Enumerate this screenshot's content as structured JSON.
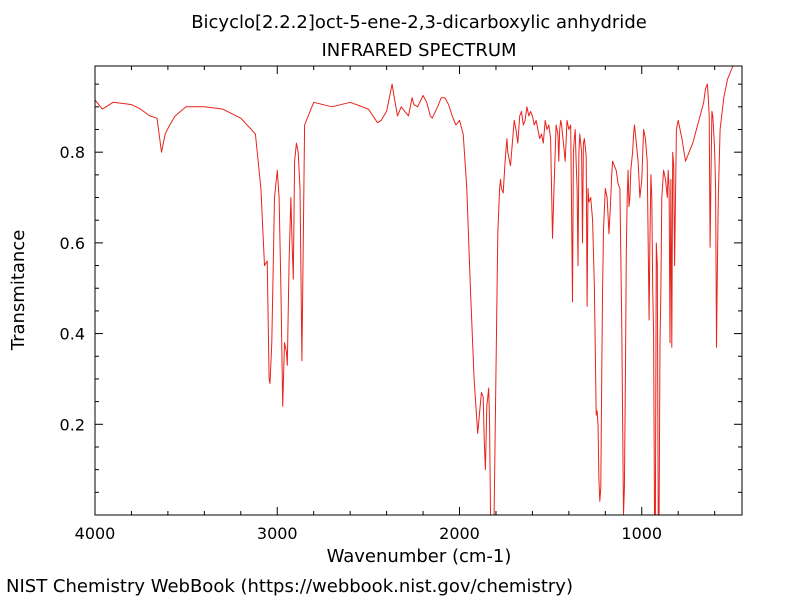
{
  "credit": "NIST Chemistry WebBook (https://webbook.nist.gov/chemistry)",
  "chart_data": {
    "type": "line",
    "title": "Bicyclo[2.2.2]oct-5-ene-2,3-dicarboxylic anhydride",
    "subtitle": "INFRARED SPECTRUM",
    "xlabel": "Wavenumber (cm-1)",
    "ylabel": "Transmitance",
    "xlim": [
      4000,
      450
    ],
    "ylim": [
      0,
      0.99
    ],
    "x_reversed": true,
    "grid": false,
    "line_color": "#e8231c",
    "x_ticks": [
      4000,
      3000,
      2000,
      1000
    ],
    "x_tick_labels": [
      "4000",
      "3000",
      "2000",
      "1000"
    ],
    "y_ticks": [
      0.2,
      0.4,
      0.6,
      0.8
    ],
    "y_tick_labels": [
      "0.2",
      "0.4",
      "0.6",
      "0.8"
    ],
    "series": [
      {
        "x": [
          4000,
          3960,
          3900,
          3800,
          3750,
          3700,
          3660,
          3635,
          3615,
          3590,
          3560,
          3500,
          3400,
          3300,
          3200,
          3120,
          3090,
          3070,
          3055,
          3045,
          3040,
          3030,
          3015,
          3000,
          2990,
          2980,
          2970,
          2960,
          2950,
          2945,
          2935,
          2925,
          2920,
          2912,
          2905,
          2895,
          2885,
          2875,
          2865,
          2850,
          2800,
          2700,
          2600,
          2500,
          2450,
          2430,
          2400,
          2370,
          2360,
          2340,
          2320,
          2300,
          2280,
          2260,
          2250,
          2230,
          2200,
          2180,
          2160,
          2150,
          2120,
          2100,
          2080,
          2060,
          2040,
          2020,
          2000,
          1980,
          1960,
          1940,
          1920,
          1900,
          1880,
          1870,
          1864,
          1858,
          1850,
          1845,
          1840,
          1835,
          1830,
          1820,
          1810,
          1800,
          1790,
          1780,
          1775,
          1770,
          1760,
          1750,
          1740,
          1735,
          1720,
          1700,
          1690,
          1680,
          1670,
          1660,
          1650,
          1640,
          1630,
          1620,
          1610,
          1600,
          1590,
          1580,
          1570,
          1560,
          1550,
          1540,
          1530,
          1520,
          1510,
          1500,
          1490,
          1480,
          1470,
          1460,
          1455,
          1450,
          1445,
          1440,
          1435,
          1430,
          1420,
          1410,
          1400,
          1390,
          1380,
          1375,
          1370,
          1365,
          1360,
          1355,
          1350,
          1345,
          1340,
          1335,
          1330,
          1325,
          1320,
          1315,
          1310,
          1305,
          1300,
          1295,
          1290,
          1280,
          1270,
          1260,
          1250,
          1245,
          1240,
          1235,
          1230,
          1225,
          1220,
          1215,
          1210,
          1200,
          1190,
          1180,
          1170,
          1165,
          1160,
          1150,
          1140,
          1130,
          1120,
          1110,
          1100,
          1095,
          1090,
          1085,
          1080,
          1075,
          1070,
          1065,
          1060,
          1055,
          1050,
          1045,
          1040,
          1030,
          1020,
          1010,
          1000,
          990,
          980,
          970,
          960,
          955,
          950,
          945,
          940,
          935,
          930,
          925,
          920,
          915,
          910,
          905,
          900,
          895,
          890,
          880,
          870,
          860,
          855,
          850,
          845,
          840,
          835,
          830,
          825,
          820,
          810,
          800,
          780,
          760,
          740,
          720,
          700,
          680,
          660,
          650,
          640,
          635,
          630,
          625,
          620,
          615,
          610,
          605,
          600,
          595,
          590,
          585,
          580,
          570,
          550,
          530,
          500,
          480,
          460,
          450
        ],
        "y": [
          0.915,
          0.895,
          0.91,
          0.905,
          0.895,
          0.88,
          0.875,
          0.8,
          0.84,
          0.86,
          0.88,
          0.9,
          0.9,
          0.895,
          0.875,
          0.84,
          0.72,
          0.55,
          0.56,
          0.3,
          0.29,
          0.38,
          0.7,
          0.76,
          0.7,
          0.5,
          0.24,
          0.38,
          0.36,
          0.33,
          0.56,
          0.7,
          0.62,
          0.52,
          0.78,
          0.82,
          0.8,
          0.72,
          0.34,
          0.86,
          0.91,
          0.9,
          0.91,
          0.895,
          0.865,
          0.87,
          0.89,
          0.95,
          0.925,
          0.88,
          0.9,
          0.89,
          0.88,
          0.92,
          0.905,
          0.9,
          0.925,
          0.91,
          0.88,
          0.875,
          0.9,
          0.92,
          0.92,
          0.905,
          0.88,
          0.86,
          0.87,
          0.84,
          0.72,
          0.5,
          0.3,
          0.18,
          0.27,
          0.26,
          0.16,
          0.1,
          0.24,
          0.26,
          0.28,
          0.2,
          0.0,
          0.0,
          0.0,
          0.32,
          0.62,
          0.72,
          0.74,
          0.72,
          0.71,
          0.78,
          0.83,
          0.8,
          0.77,
          0.87,
          0.85,
          0.82,
          0.88,
          0.89,
          0.86,
          0.87,
          0.9,
          0.88,
          0.89,
          0.88,
          0.86,
          0.87,
          0.85,
          0.83,
          0.84,
          0.82,
          0.87,
          0.85,
          0.86,
          0.83,
          0.61,
          0.74,
          0.86,
          0.84,
          0.78,
          0.85,
          0.87,
          0.86,
          0.84,
          0.82,
          0.78,
          0.87,
          0.85,
          0.86,
          0.47,
          0.8,
          0.83,
          0.85,
          0.78,
          0.72,
          0.55,
          0.8,
          0.84,
          0.82,
          0.8,
          0.6,
          0.82,
          0.83,
          0.81,
          0.79,
          0.46,
          0.72,
          0.69,
          0.7,
          0.65,
          0.5,
          0.22,
          0.23,
          0.2,
          0.08,
          0.03,
          0.06,
          0.3,
          0.5,
          0.63,
          0.72,
          0.7,
          0.62,
          0.7,
          0.75,
          0.78,
          0.77,
          0.76,
          0.73,
          0.72,
          0.43,
          0.0,
          0.06,
          0.3,
          0.58,
          0.7,
          0.76,
          0.68,
          0.7,
          0.76,
          0.78,
          0.8,
          0.84,
          0.86,
          0.82,
          0.78,
          0.7,
          0.74,
          0.85,
          0.83,
          0.78,
          0.43,
          0.62,
          0.75,
          0.7,
          0.5,
          0.4,
          0.0,
          0.0,
          0.6,
          0.55,
          0.0,
          0.0,
          0.38,
          0.5,
          0.7,
          0.76,
          0.74,
          0.7,
          0.76,
          0.72,
          0.38,
          0.74,
          0.37,
          0.8,
          0.77,
          0.55,
          0.85,
          0.87,
          0.83,
          0.78,
          0.8,
          0.82,
          0.85,
          0.88,
          0.91,
          0.94,
          0.95,
          0.92,
          0.88,
          0.59,
          0.75,
          0.89,
          0.88,
          0.84,
          0.8,
          0.72,
          0.37,
          0.55,
          0.7,
          0.85,
          0.92,
          0.96,
          0.99,
          0.99,
          0.99,
          0.99
        ]
      }
    ]
  }
}
